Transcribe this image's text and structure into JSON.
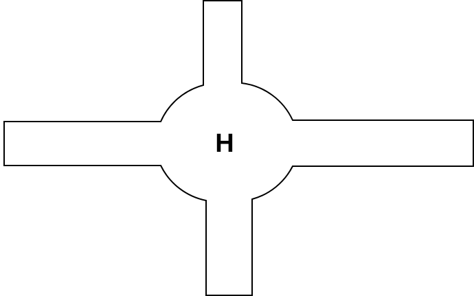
{
  "diagram": {
    "hub_label": "H",
    "stroke_color": "#000000",
    "fill_color": "#ffffff"
  }
}
